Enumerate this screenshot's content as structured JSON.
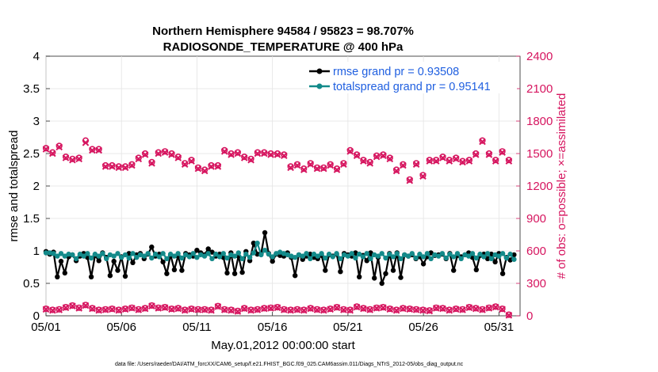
{
  "chart_data": {
    "type": "line",
    "title_line1": "Northern Hemisphere 94584 / 95823 = 98.707%",
    "title_line2": "RADIOSONDE_TEMPERATURE @ 400 hPa",
    "xlabel": "May.01,2012 00:00:00 start",
    "ylabel_left": "rmse and totalspread",
    "ylabel_right": "# of obs: o=possible; ×=assimilated",
    "xlim": [
      0,
      31.4
    ],
    "ylim_left": [
      0,
      4
    ],
    "ylim_right": [
      0,
      2400
    ],
    "x_tick_values": [
      0,
      5,
      10,
      15,
      20,
      25,
      30
    ],
    "x_tick_labels": [
      "05/01",
      "05/06",
      "05/11",
      "05/16",
      "05/21",
      "05/26",
      "05/31"
    ],
    "y_left_ticks": [
      "0",
      "0.5",
      "1",
      "1.5",
      "2",
      "2.5",
      "3",
      "3.5",
      "4"
    ],
    "y_right_ticks": [
      "0",
      "300",
      "600",
      "900",
      "1200",
      "1500",
      "1800",
      "2100",
      "2400"
    ],
    "series": [
      {
        "name": "rmse",
        "legend": "rmse grand pr = 0.93508",
        "axis": "left",
        "color": "#000000",
        "values": [
          0.99,
          0.95,
          0.98,
          0.6,
          0.84,
          0.66,
          0.91,
          0.94,
          0.85,
          0.92,
          0.96,
          0.9,
          0.6,
          0.93,
          0.85,
          0.97,
          0.9,
          0.62,
          0.84,
          0.7,
          0.91,
          0.61,
          0.96,
          0.82,
          0.94,
          0.96,
          0.88,
          0.95,
          1.06,
          0.92,
          0.95,
          0.83,
          0.65,
          0.94,
          0.71,
          0.92,
          0.7,
          0.96,
          0.94,
          0.92,
          1.01,
          0.97,
          0.94,
          1.03,
          0.98,
          0.92,
          0.95,
          0.9,
          0.66,
          0.97,
          0.65,
          0.92,
          0.67,
          0.99,
          0.85,
          1.12,
          0.95,
          0.96,
          1.28,
          0.96,
          0.84,
          0.95,
          0.93,
          0.92,
          0.97,
          0.9,
          0.62,
          0.94,
          0.87,
          0.92,
          0.95,
          0.9,
          0.88,
          0.93,
          0.7,
          0.94,
          0.92,
          0.95,
          0.68,
          0.96,
          0.94,
          0.92,
          0.97,
          0.6,
          0.93,
          0.85,
          0.97,
          0.58,
          0.9,
          0.5,
          0.65,
          0.96,
          0.7,
          0.97,
          0.59,
          0.94,
          0.92,
          0.94,
          0.88,
          0.91,
          0.8,
          0.91,
          0.97,
          0.93,
          0.94,
          0.95,
          0.88,
          0.96,
          0.7,
          0.93,
          0.91,
          0.94,
          0.97,
          0.9,
          0.71,
          0.93,
          0.95,
          0.88,
          0.95,
          0.83,
          0.96,
          0.65,
          0.9,
          0.86,
          0.94
        ],
        "x_start": 0,
        "x_step": 0.25
      },
      {
        "name": "totalspread",
        "legend": "totalspread grand pr = 0.95141",
        "axis": "left",
        "color": "#138a8a",
        "values": [
          0.97,
          0.97,
          0.96,
          0.92,
          0.96,
          0.92,
          0.95,
          0.94,
          0.88,
          0.95,
          0.92,
          0.96,
          0.89,
          0.95,
          0.92,
          0.96,
          0.88,
          0.94,
          0.92,
          0.96,
          0.9,
          0.94,
          0.89,
          0.96,
          0.9,
          0.94,
          0.92,
          0.96,
          0.89,
          0.95,
          0.91,
          0.96,
          0.88,
          0.95,
          0.92,
          0.96,
          0.89,
          0.94,
          0.91,
          0.96,
          0.9,
          0.94,
          0.92,
          0.96,
          0.88,
          0.95,
          0.91,
          0.96,
          0.89,
          0.94,
          0.92,
          0.97,
          0.88,
          0.95,
          0.9,
          0.97,
          1.12,
          0.94,
          1.01,
          0.95,
          0.91,
          0.96,
          0.98,
          0.96,
          0.94,
          0.92,
          0.9,
          0.94,
          0.92,
          0.96,
          0.88,
          0.95,
          0.92,
          0.96,
          0.89,
          0.95,
          0.91,
          0.96,
          0.88,
          0.94,
          0.92,
          0.96,
          0.89,
          0.95,
          0.91,
          0.96,
          0.88,
          0.94,
          0.92,
          0.96,
          0.89,
          0.95,
          0.91,
          0.96,
          0.88,
          0.94,
          0.92,
          0.96,
          0.89,
          0.95,
          0.91,
          0.96,
          0.88,
          0.94,
          0.92,
          0.96,
          0.89,
          0.95,
          0.91,
          0.96,
          0.88,
          0.94,
          0.92,
          0.96,
          0.89,
          0.95,
          0.91,
          0.96,
          0.88,
          0.94,
          0.92,
          0.96,
          0.89,
          0.95,
          0.87
        ],
        "x_start": 0,
        "x_step": 0.25
      },
      {
        "name": "obs_possible",
        "axis": "right",
        "color": "#d6155f",
        "values": [
          1550,
          1510,
          1570,
          1470,
          1450,
          1460,
          1620,
          1540,
          1540,
          1390,
          1390,
          1380,
          1380,
          1400,
          1460,
          1500,
          1420,
          1510,
          1520,
          1500,
          1470,
          1410,
          1440,
          1370,
          1350,
          1390,
          1390,
          1530,
          1500,
          1510,
          1470,
          1450,
          1510,
          1510,
          1500,
          1500,
          1490,
          1380,
          1400,
          1360,
          1410,
          1370,
          1370,
          1400,
          1360,
          1410,
          1530,
          1490,
          1440,
          1420,
          1480,
          1490,
          1460,
          1350,
          1400,
          1260,
          1410,
          1300,
          1440,
          1440,
          1470,
          1440,
          1460,
          1430,
          1440,
          1500,
          1620,
          1500,
          1440,
          1520,
          1440
        ],
        "x_start": 0,
        "x_step": 0.438
      },
      {
        "name": "obs_assimilated",
        "axis": "right",
        "color": "#d6155f",
        "values": [
          1540,
          1500,
          1560,
          1460,
          1440,
          1450,
          1600,
          1530,
          1530,
          1380,
          1380,
          1370,
          1370,
          1390,
          1450,
          1490,
          1410,
          1500,
          1510,
          1490,
          1460,
          1400,
          1430,
          1360,
          1340,
          1380,
          1380,
          1520,
          1490,
          1500,
          1460,
          1440,
          1500,
          1500,
          1490,
          1490,
          1480,
          1370,
          1390,
          1350,
          1400,
          1360,
          1360,
          1390,
          1350,
          1400,
          1520,
          1480,
          1430,
          1410,
          1470,
          1480,
          1450,
          1340,
          1390,
          1250,
          1400,
          1290,
          1430,
          1430,
          1460,
          1430,
          1450,
          1420,
          1430,
          1490,
          1610,
          1490,
          1430,
          1510,
          1430
        ],
        "x_start": 0,
        "x_step": 0.438
      },
      {
        "name": "obs_possible_low",
        "axis": "right",
        "color": "#d6155f",
        "values": [
          65,
          55,
          60,
          80,
          95,
          75,
          100,
          70,
          55,
          60,
          65,
          55,
          65,
          75,
          60,
          70,
          95,
          75,
          80,
          65,
          70,
          55,
          65,
          60,
          60,
          55,
          90,
          60,
          55,
          45,
          70,
          55,
          60,
          70,
          75,
          80,
          60,
          55,
          60,
          55,
          70,
          60,
          55,
          65,
          80,
          60,
          55,
          85,
          70,
          60,
          75,
          80,
          65,
          55,
          70,
          65,
          60,
          55,
          50,
          75,
          70,
          55,
          65,
          60,
          80,
          70,
          60,
          75,
          85,
          65,
          10
        ],
        "x_start": 0,
        "x_step": 0.438
      },
      {
        "name": "obs_assimilated_low",
        "axis": "right",
        "color": "#d6155f",
        "values": [
          60,
          50,
          55,
          75,
          90,
          70,
          95,
          65,
          50,
          55,
          60,
          50,
          60,
          70,
          55,
          65,
          90,
          70,
          75,
          60,
          65,
          50,
          60,
          55,
          55,
          50,
          85,
          55,
          50,
          40,
          65,
          50,
          55,
          65,
          70,
          75,
          55,
          50,
          55,
          50,
          65,
          55,
          50,
          60,
          75,
          55,
          50,
          80,
          65,
          55,
          70,
          75,
          60,
          50,
          65,
          60,
          55,
          50,
          45,
          70,
          65,
          50,
          60,
          55,
          75,
          65,
          55,
          70,
          80,
          60,
          5
        ],
        "x_start": 0,
        "x_step": 0.438
      }
    ]
  },
  "footer": "data file: /Users/raeder/DAI/ATM_forcXX/CAM6_setup/f.e21.FHIST_BGC.f09_025.CAM6assim.011/Diags_NTrS_2012-05/obs_diag_output.nc",
  "colors": {
    "rmse": "#000000",
    "totalspread": "#138a8a",
    "obs": "#d6155f",
    "legend_text": "#1f5fe0"
  }
}
